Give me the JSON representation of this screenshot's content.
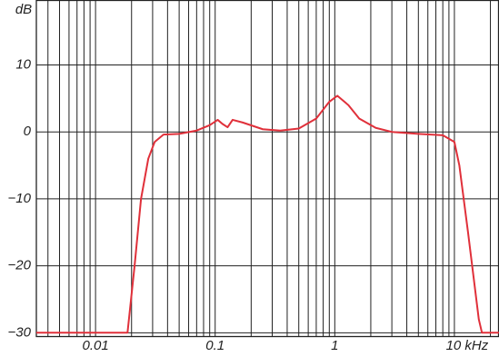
{
  "chart_data": {
    "type": "line",
    "y_label": "dB",
    "x": [
      0.0032,
      0.0185,
      0.0212,
      0.024,
      0.0276,
      0.0312,
      0.037,
      0.05,
      0.07,
      0.09,
      0.105,
      0.115,
      0.127,
      0.14,
      0.17,
      0.25,
      0.35,
      0.5,
      0.7,
      0.9,
      1.05,
      1.3,
      1.6,
      2.2,
      3,
      5,
      8,
      10,
      11,
      13,
      16,
      17,
      23.6
    ],
    "values": [
      -30,
      -30,
      -20,
      -10,
      -4,
      -1.5,
      -0.4,
      -0.3,
      0.2,
      1.0,
      1.8,
      1.2,
      0.7,
      1.8,
      1.4,
      0.4,
      0.2,
      0.5,
      2,
      4.5,
      5.4,
      4,
      2,
      0.6,
      0,
      -0.3,
      -0.5,
      -1.5,
      -5,
      -15,
      -28,
      -30,
      -30
    ],
    "color": "#e0303a",
    "xlim": [
      0.0032,
      23.6
    ],
    "log_x": true,
    "xticks": [
      0.01,
      0.1,
      1,
      {
        "value": 10,
        "label": "10 kHz"
      }
    ],
    "ylim": [
      -30.5,
      19.7
    ],
    "yticks": [
      10,
      0,
      {
        "value": -10,
        "label": "−10"
      },
      {
        "value": -20,
        "label": "−20"
      },
      {
        "value": -30,
        "label": "−30"
      }
    ],
    "grid": true,
    "minor_grid": true
  }
}
